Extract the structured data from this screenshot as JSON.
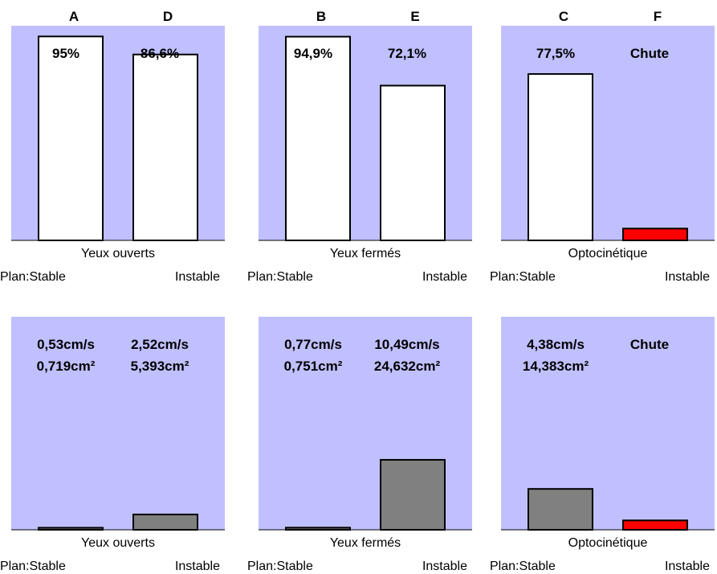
{
  "chart_data": [
    {
      "type": "bar",
      "row": 0,
      "col": 0,
      "categories": [
        "A",
        "D"
      ],
      "values": [
        95,
        86.6
      ],
      "unit": "%",
      "data_labels": [
        [
          "95%"
        ],
        [
          "86,6%"
        ]
      ],
      "colors": [
        "#ffffff",
        "#ffffff"
      ],
      "ylim": [
        0,
        100
      ],
      "xlabel": "Yeux ouverts",
      "plan_left": "Plan:Stable",
      "plan_right": "Instable"
    },
    {
      "type": "bar",
      "row": 0,
      "col": 1,
      "categories": [
        "B",
        "E"
      ],
      "values": [
        94.9,
        72.1
      ],
      "unit": "%",
      "data_labels": [
        [
          "94,9%"
        ],
        [
          "72,1%"
        ]
      ],
      "colors": [
        "#ffffff",
        "#ffffff"
      ],
      "ylim": [
        0,
        100
      ],
      "xlabel": "Yeux fermés",
      "plan_left": "Plan:Stable",
      "plan_right": "Instable"
    },
    {
      "type": "bar",
      "row": 0,
      "col": 2,
      "categories": [
        "C",
        "F"
      ],
      "values": [
        77.5,
        5.5
      ],
      "unit": "%",
      "data_labels": [
        [
          "77,5%"
        ],
        [
          "Chute"
        ]
      ],
      "colors": [
        "#ffffff",
        "#ff0000"
      ],
      "ylim": [
        0,
        100
      ],
      "xlabel": "Optocinétique",
      "plan_left": "Plan:Stable",
      "plan_right": "Instable"
    },
    {
      "type": "bar",
      "row": 1,
      "col": 0,
      "categories": [
        "A",
        "D"
      ],
      "values": [
        0.719,
        5.393
      ],
      "unit": "cm²",
      "data_labels": [
        [
          "0,53cm/s",
          "0,719cm²"
        ],
        [
          "2,52cm/s",
          "5,393cm²"
        ]
      ],
      "colors": [
        "#808080",
        "#808080"
      ],
      "ylim": [
        0,
        75
      ],
      "xlabel": "Yeux ouverts",
      "plan_left": "Plan:Stable",
      "plan_right": "Instable"
    },
    {
      "type": "bar",
      "row": 1,
      "col": 1,
      "categories": [
        "B",
        "E"
      ],
      "values": [
        0.751,
        24.632
      ],
      "unit": "cm²",
      "data_labels": [
        [
          "0,77cm/s",
          "0,751cm²"
        ],
        [
          "10,49cm/s",
          "24,632cm²"
        ]
      ],
      "colors": [
        "#808080",
        "#808080"
      ],
      "ylim": [
        0,
        75
      ],
      "xlabel": "Yeux fermés",
      "plan_left": "Plan:Stable",
      "plan_right": "Instable"
    },
    {
      "type": "bar",
      "row": 1,
      "col": 2,
      "categories": [
        "C",
        "F"
      ],
      "values": [
        14.383,
        3.3
      ],
      "unit": "cm²",
      "data_labels": [
        [
          "4,38cm/s",
          "14,383cm²"
        ],
        [
          "Chute"
        ]
      ],
      "colors": [
        "#808080",
        "#ff0000"
      ],
      "ylim": [
        0,
        75
      ],
      "xlabel": "Optocinétique",
      "plan_left": "Plan:Stable",
      "plan_right": "Instable"
    }
  ]
}
